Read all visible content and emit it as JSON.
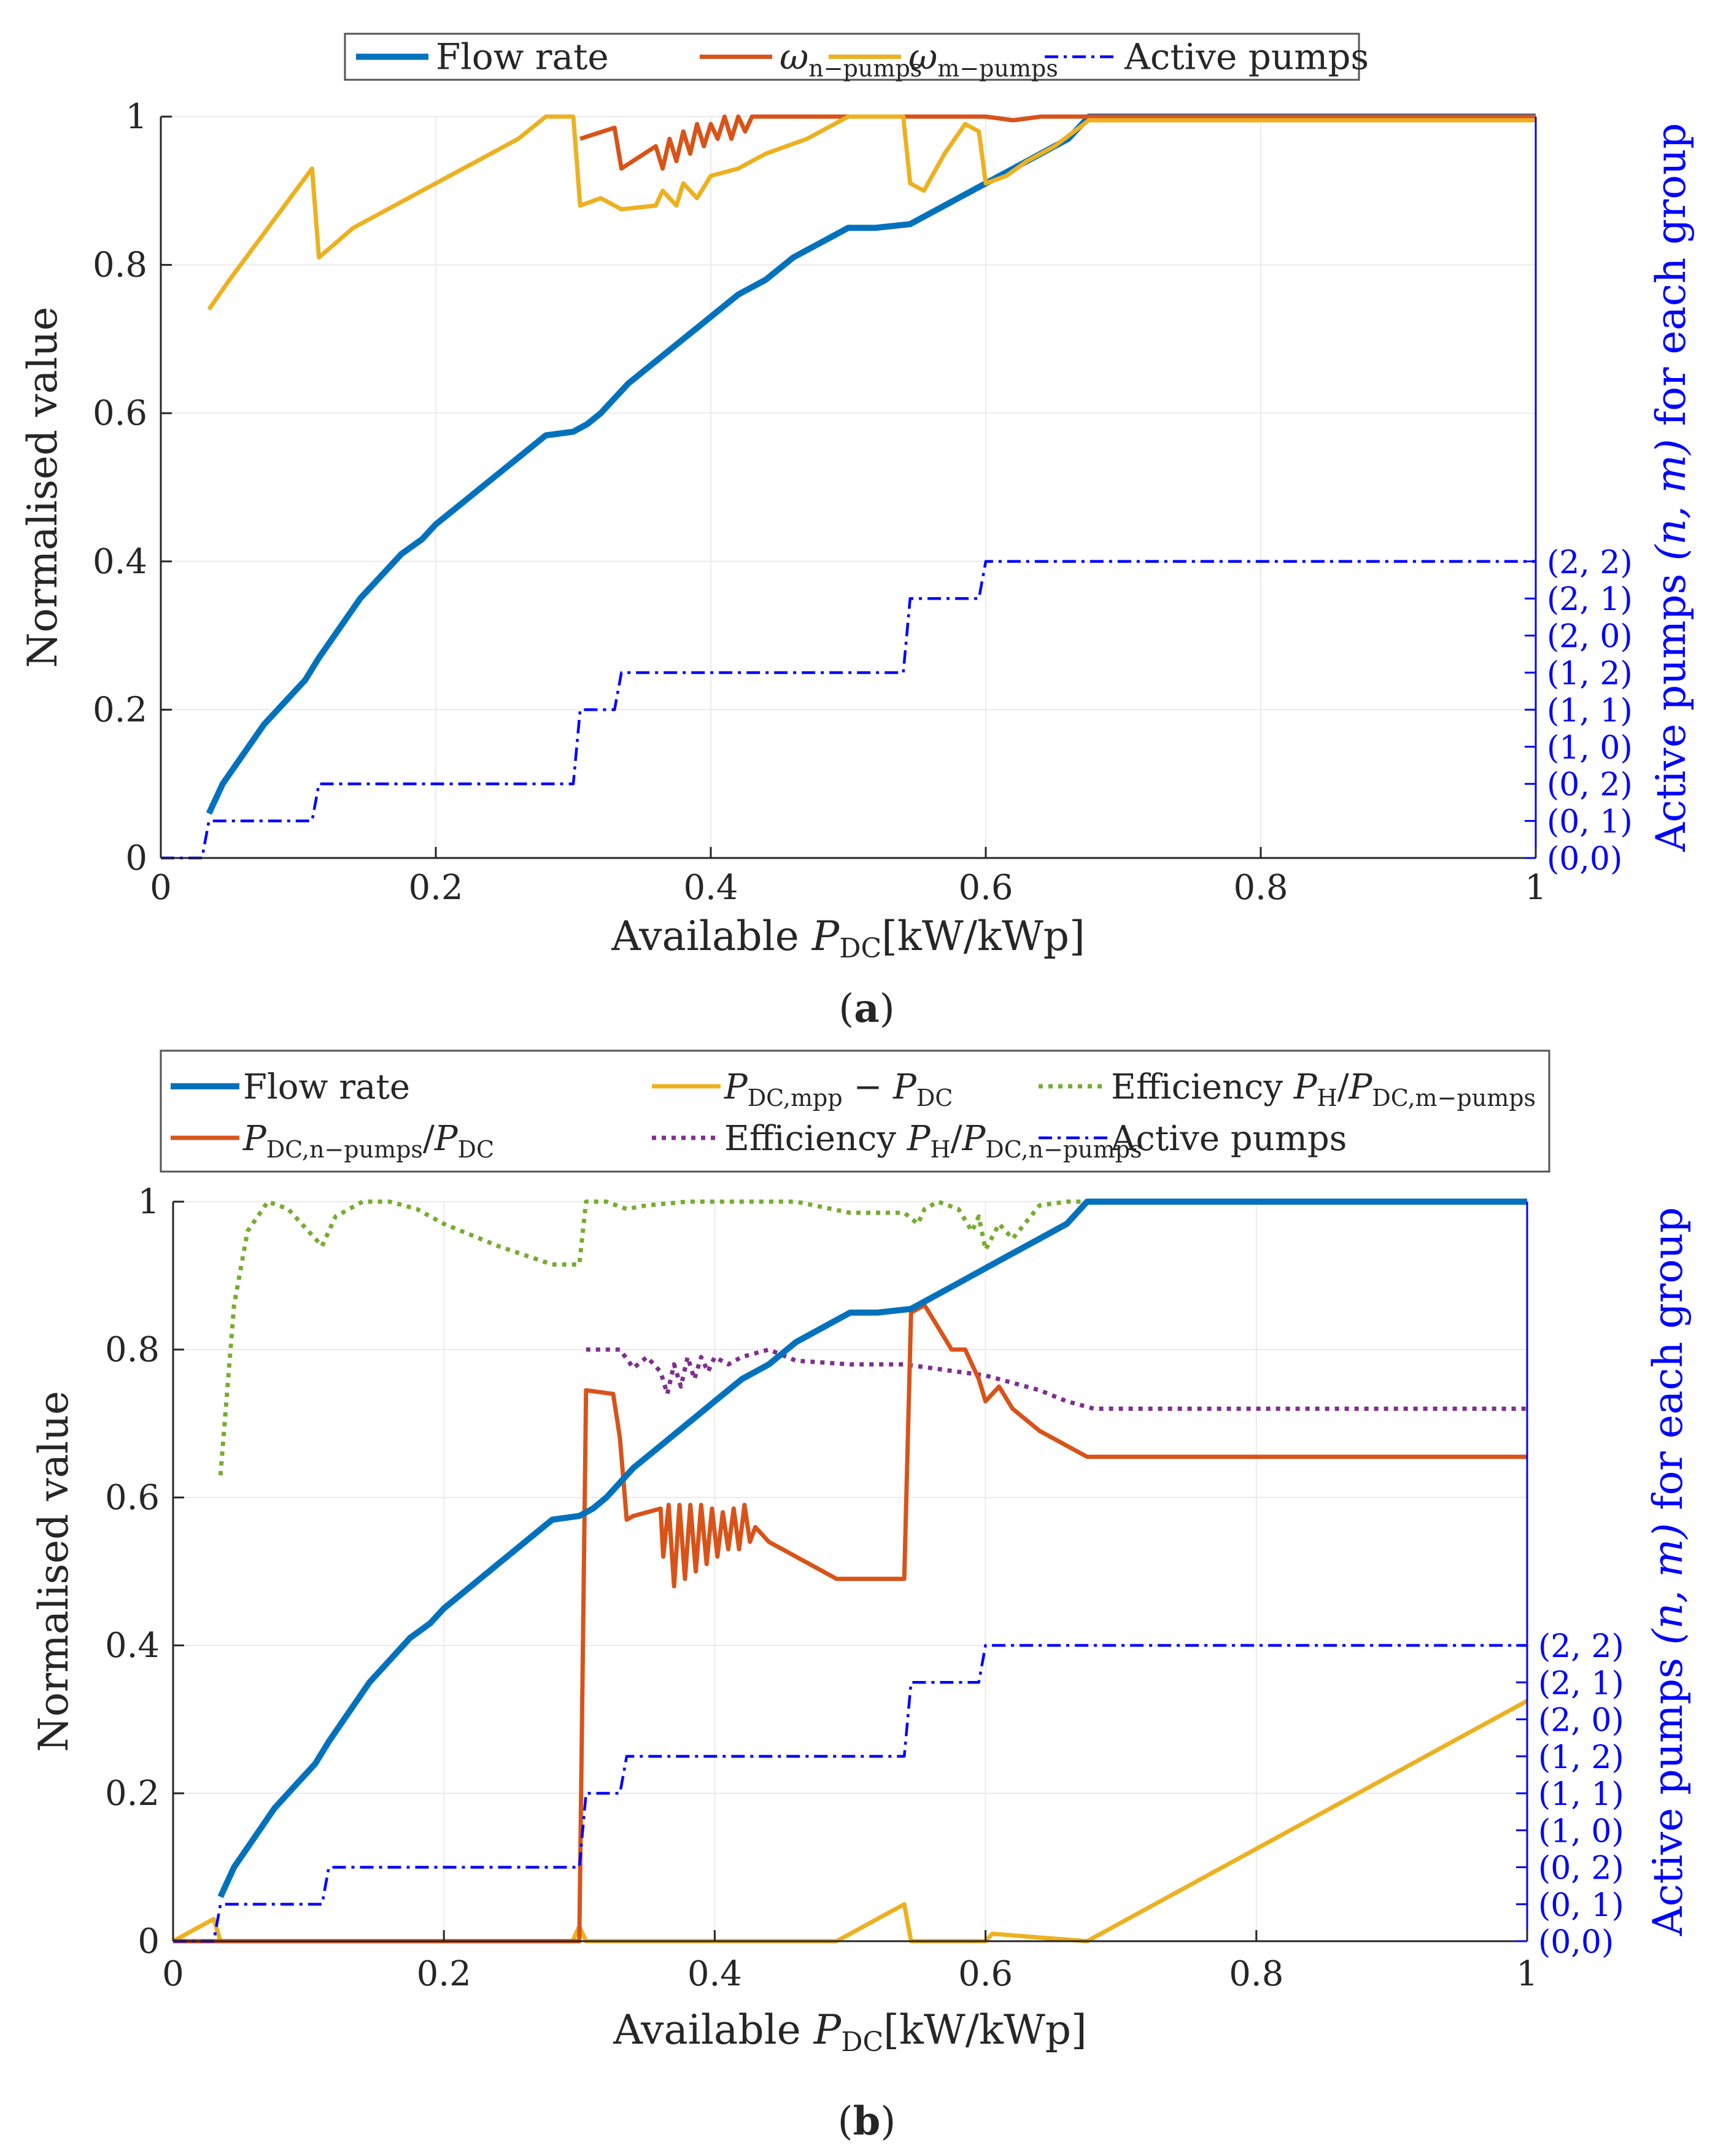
{
  "colors": {
    "flow": "#0072BD",
    "red": "#D95319",
    "yellow": "#EDB120",
    "green": "#77AC30",
    "purple": "#7E2F8E",
    "blue": "#0000FF",
    "axis": "#262626",
    "grid": "#ebebeb"
  },
  "chart_data": [
    {
      "panel_label": "(a)",
      "type": "line",
      "xlabel_prefix": "Available ",
      "xlabel_var": "P",
      "xlabel_sub": "DC",
      "xlabel_unit": "[kW/kWp]",
      "ylabel": "Normalised value",
      "y2label_prefix": "Active pumps ",
      "y2label_var": "(n, m)",
      "y2label_suffix": " for each group",
      "xlim": [
        0,
        1
      ],
      "ylim": [
        0,
        1.0
      ],
      "xticks": [
        "0",
        "0.2",
        "0.4",
        "0.6",
        "0.8",
        "1"
      ],
      "yticks": [
        "0",
        "0.2",
        "0.4",
        "0.6",
        "0.8",
        "1"
      ],
      "y2_ticklabels": [
        "(0,0)",
        "(0, 1)",
        "(0, 2)",
        "(1, 0)",
        "(1, 1)",
        "(1, 2)",
        "(2, 0)",
        "(2, 1)",
        "(2, 2)"
      ],
      "legend": [
        {
          "label": "Flow rate",
          "sub": "",
          "color": "flow",
          "dash": "solid"
        },
        {
          "label": "ω",
          "sub": "n−pumps",
          "color": "red",
          "dash": "solid"
        },
        {
          "label": "ω",
          "sub": "m−pumps",
          "color": "yellow",
          "dash": "solid"
        },
        {
          "label": "Active pumps",
          "sub": "",
          "color": "blue",
          "dash": "dashdot"
        }
      ],
      "series": [
        {
          "name": "Flow rate",
          "color": "flow",
          "dash": "solid",
          "x": [
            0.035,
            0.045,
            0.06,
            0.075,
            0.09,
            0.105,
            0.115,
            0.13,
            0.145,
            0.16,
            0.175,
            0.19,
            0.2,
            0.22,
            0.24,
            0.26,
            0.28,
            0.3,
            0.31,
            0.32,
            0.33,
            0.34,
            0.36,
            0.38,
            0.4,
            0.42,
            0.44,
            0.46,
            0.48,
            0.49,
            0.5,
            0.52,
            0.545,
            0.56,
            0.58,
            0.6,
            0.62,
            0.64,
            0.66,
            0.675,
            1.0
          ],
          "y": [
            0.06,
            0.1,
            0.14,
            0.18,
            0.21,
            0.24,
            0.27,
            0.31,
            0.35,
            0.38,
            0.41,
            0.43,
            0.45,
            0.48,
            0.51,
            0.54,
            0.57,
            0.575,
            0.585,
            0.6,
            0.62,
            0.64,
            0.67,
            0.7,
            0.73,
            0.76,
            0.78,
            0.81,
            0.83,
            0.84,
            0.85,
            0.85,
            0.855,
            0.87,
            0.89,
            0.91,
            0.93,
            0.95,
            0.97,
            1.0,
            1.0
          ]
        },
        {
          "name": "ω n-pumps",
          "color": "red",
          "dash": "solid",
          "x": [
            0.305,
            0.33,
            0.335,
            0.36,
            0.365,
            0.37,
            0.375,
            0.38,
            0.385,
            0.39,
            0.395,
            0.4,
            0.405,
            0.41,
            0.415,
            0.42,
            0.425,
            0.43,
            0.44,
            0.5,
            0.6,
            0.62,
            0.64,
            0.66,
            1.0
          ],
          "y": [
            0.97,
            0.985,
            0.93,
            0.96,
            0.93,
            0.97,
            0.94,
            0.98,
            0.95,
            0.99,
            0.96,
            0.99,
            0.97,
            1.0,
            0.97,
            1.0,
            0.98,
            1.0,
            1.0,
            1.0,
            1.0,
            0.995,
            1.0,
            1.0,
            1.0
          ]
        },
        {
          "name": "ω m-pumps",
          "color": "yellow",
          "dash": "solid",
          "x": [
            0.035,
            0.05,
            0.07,
            0.09,
            0.11,
            0.115,
            0.14,
            0.17,
            0.2,
            0.23,
            0.26,
            0.28,
            0.3,
            0.305,
            0.32,
            0.335,
            0.36,
            0.365,
            0.375,
            0.38,
            0.39,
            0.4,
            0.42,
            0.44,
            0.47,
            0.49,
            0.5,
            0.53,
            0.54,
            0.545,
            0.555,
            0.57,
            0.585,
            0.595,
            0.6,
            0.615,
            0.63,
            0.65,
            0.675,
            1.0
          ],
          "y": [
            0.74,
            0.78,
            0.83,
            0.88,
            0.93,
            0.81,
            0.85,
            0.88,
            0.91,
            0.94,
            0.97,
            1.0,
            1.0,
            0.88,
            0.89,
            0.875,
            0.88,
            0.9,
            0.88,
            0.91,
            0.89,
            0.92,
            0.93,
            0.95,
            0.97,
            0.99,
            1.0,
            1.0,
            1.0,
            0.91,
            0.9,
            0.95,
            0.99,
            0.98,
            0.91,
            0.92,
            0.94,
            0.96,
            0.995,
            0.995
          ]
        },
        {
          "name": "Active pumps",
          "color": "blue",
          "dash": "dashdot",
          "x": [
            0.0,
            0.03,
            0.035,
            0.11,
            0.115,
            0.3,
            0.305,
            0.33,
            0.335,
            0.54,
            0.545,
            0.595,
            0.6,
            1.0
          ],
          "y": [
            0.0,
            0.0,
            0.05,
            0.05,
            0.1,
            0.1,
            0.2,
            0.2,
            0.25,
            0.25,
            0.35,
            0.35,
            0.4,
            0.4
          ]
        }
      ]
    },
    {
      "panel_label": "(b)",
      "type": "line",
      "xlabel_prefix": "Available ",
      "xlabel_var": "P",
      "xlabel_sub": "DC",
      "xlabel_unit": "[kW/kWp]",
      "ylabel": "Normalised value",
      "y2label_prefix": "Active pumps ",
      "y2label_var": "(n, m)",
      "y2label_suffix": " for each group",
      "xlim": [
        0,
        1
      ],
      "ylim": [
        0,
        1.0
      ],
      "xticks": [
        "0",
        "0.2",
        "0.4",
        "0.6",
        "0.8",
        "1"
      ],
      "yticks": [
        "0",
        "0.2",
        "0.4",
        "0.6",
        "0.8",
        "1"
      ],
      "y2_ticklabels": [
        "(0,0)",
        "(0, 1)",
        "(0, 2)",
        "(1, 0)",
        "(1, 1)",
        "(1, 2)",
        "(2, 0)",
        "(2, 1)",
        "(2, 2)"
      ],
      "legend": [
        {
          "label": "Flow rate",
          "color": "flow",
          "dash": "solid",
          "col": 0,
          "row": 0,
          "segments": [
            {
              "t": "Flow rate",
              "s": "n"
            }
          ]
        },
        {
          "label": "PDC,mpp − PDC",
          "color": "yellow",
          "dash": "solid",
          "col": 1,
          "row": 0,
          "segments": [
            {
              "t": "P",
              "s": "i"
            },
            {
              "t": "DC,mpp",
              "s": "sub"
            },
            {
              "t": " − ",
              "s": "n"
            },
            {
              "t": "P",
              "s": "i"
            },
            {
              "t": "DC",
              "s": "sub"
            }
          ]
        },
        {
          "label": "Efficiency PH/PDC,m−pumps",
          "color": "green",
          "dash": "dot",
          "col": 2,
          "row": 0,
          "segments": [
            {
              "t": "Efficiency ",
              "s": "n"
            },
            {
              "t": "P",
              "s": "i"
            },
            {
              "t": "H",
              "s": "sub"
            },
            {
              "t": "/",
              "s": "n"
            },
            {
              "t": "P",
              "s": "i"
            },
            {
              "t": "DC,m−pumps",
              "s": "sub"
            }
          ]
        },
        {
          "label": "PDC,n−pumps/PDC",
          "color": "red",
          "dash": "solid",
          "col": 0,
          "row": 1,
          "segments": [
            {
              "t": "P",
              "s": "i"
            },
            {
              "t": "DC,n−pumps",
              "s": "sub"
            },
            {
              "t": "/",
              "s": "n"
            },
            {
              "t": "P",
              "s": "i"
            },
            {
              "t": "DC",
              "s": "sub"
            }
          ]
        },
        {
          "label": "Efficiency PH/PDC,n−pumps",
          "color": "purple",
          "dash": "dot",
          "col": 1,
          "row": 1,
          "segments": [
            {
              "t": "Efficiency ",
              "s": "n"
            },
            {
              "t": "P",
              "s": "i"
            },
            {
              "t": "H",
              "s": "sub"
            },
            {
              "t": "/",
              "s": "n"
            },
            {
              "t": "P",
              "s": "i"
            },
            {
              "t": "DC,n−pumps",
              "s": "sub"
            }
          ]
        },
        {
          "label": "Active pumps",
          "color": "blue",
          "dash": "dashdot",
          "col": 2,
          "row": 1,
          "segments": [
            {
              "t": "Active pumps",
              "s": "n"
            }
          ]
        }
      ],
      "series": [
        {
          "name": "Efficiency PH/PDC,m-pumps",
          "color": "green",
          "dash": "dot",
          "x": [
            0.035,
            0.045,
            0.055,
            0.07,
            0.085,
            0.1,
            0.11,
            0.12,
            0.14,
            0.16,
            0.18,
            0.2,
            0.24,
            0.28,
            0.3,
            0.305,
            0.32,
            0.335,
            0.35,
            0.38,
            0.42,
            0.46,
            0.5,
            0.54,
            0.55,
            0.555,
            0.565,
            0.58,
            0.59,
            0.595,
            0.6,
            0.61,
            0.62,
            0.64,
            0.66,
            0.68,
            1.0
          ],
          "y": [
            0.63,
            0.86,
            0.96,
            1.0,
            0.99,
            0.96,
            0.94,
            0.98,
            1.0,
            1.0,
            0.99,
            0.97,
            0.94,
            0.915,
            0.915,
            1.0,
            1.0,
            0.99,
            0.995,
            1.0,
            1.0,
            1.0,
            0.985,
            0.985,
            0.97,
            0.99,
            1.0,
            0.99,
            0.96,
            0.98,
            0.935,
            0.97,
            0.95,
            0.995,
            1.0,
            1.0,
            1.0
          ]
        },
        {
          "name": "Efficiency PH/PDC,n-pumps",
          "color": "purple",
          "dash": "dot",
          "x": [
            0.305,
            0.33,
            0.34,
            0.35,
            0.36,
            0.365,
            0.37,
            0.375,
            0.38,
            0.385,
            0.39,
            0.395,
            0.4,
            0.41,
            0.42,
            0.44,
            0.46,
            0.5,
            0.54,
            0.56,
            0.58,
            0.6,
            0.62,
            0.64,
            0.66,
            0.68,
            1.0
          ],
          "y": [
            0.8,
            0.8,
            0.775,
            0.79,
            0.77,
            0.74,
            0.78,
            0.75,
            0.79,
            0.76,
            0.79,
            0.77,
            0.79,
            0.78,
            0.79,
            0.8,
            0.785,
            0.78,
            0.78,
            0.775,
            0.77,
            0.765,
            0.755,
            0.745,
            0.73,
            0.72,
            0.72
          ]
        },
        {
          "name": "PDC,mpp - PDC",
          "color": "yellow",
          "dash": "solid",
          "x": [
            0.0,
            0.03,
            0.035,
            0.1,
            0.2,
            0.295,
            0.3,
            0.305,
            0.4,
            0.49,
            0.54,
            0.545,
            0.6,
            0.605,
            0.675,
            1.0
          ],
          "y": [
            0.0,
            0.03,
            0.0,
            0.0,
            0.0,
            0.0,
            0.02,
            0.0,
            0.0,
            0.0,
            0.05,
            0.0,
            0.0,
            0.01,
            0.0,
            0.325
          ]
        },
        {
          "name": "PDC,n-pumps/PDC",
          "color": "red",
          "dash": "solid",
          "x": [
            0.0,
            0.295,
            0.3,
            0.305,
            0.325,
            0.33,
            0.335,
            0.34,
            0.36,
            0.362,
            0.366,
            0.37,
            0.374,
            0.378,
            0.382,
            0.386,
            0.39,
            0.394,
            0.398,
            0.402,
            0.406,
            0.41,
            0.414,
            0.418,
            0.422,
            0.426,
            0.43,
            0.44,
            0.46,
            0.49,
            0.54,
            0.545,
            0.555,
            0.565,
            0.575,
            0.585,
            0.595,
            0.6,
            0.61,
            0.62,
            0.64,
            0.66,
            0.675,
            1.0
          ],
          "y": [
            0.0,
            0.0,
            0.0,
            0.745,
            0.74,
            0.68,
            0.57,
            0.575,
            0.585,
            0.52,
            0.59,
            0.48,
            0.59,
            0.49,
            0.59,
            0.5,
            0.59,
            0.51,
            0.585,
            0.52,
            0.58,
            0.53,
            0.585,
            0.53,
            0.59,
            0.54,
            0.56,
            0.54,
            0.52,
            0.49,
            0.49,
            0.85,
            0.86,
            0.83,
            0.8,
            0.8,
            0.76,
            0.73,
            0.75,
            0.72,
            0.69,
            0.67,
            0.655,
            0.655
          ]
        },
        {
          "name": "Flow rate",
          "color": "flow",
          "dash": "solid",
          "x": [
            0.035,
            0.045,
            0.06,
            0.075,
            0.09,
            0.105,
            0.115,
            0.13,
            0.145,
            0.16,
            0.175,
            0.19,
            0.2,
            0.22,
            0.24,
            0.26,
            0.28,
            0.3,
            0.31,
            0.32,
            0.33,
            0.34,
            0.36,
            0.38,
            0.4,
            0.42,
            0.44,
            0.46,
            0.48,
            0.49,
            0.5,
            0.52,
            0.545,
            0.56,
            0.58,
            0.6,
            0.62,
            0.64,
            0.66,
            0.675,
            1.0
          ],
          "y": [
            0.06,
            0.1,
            0.14,
            0.18,
            0.21,
            0.24,
            0.27,
            0.31,
            0.35,
            0.38,
            0.41,
            0.43,
            0.45,
            0.48,
            0.51,
            0.54,
            0.57,
            0.575,
            0.585,
            0.6,
            0.62,
            0.64,
            0.67,
            0.7,
            0.73,
            0.76,
            0.78,
            0.81,
            0.83,
            0.84,
            0.85,
            0.85,
            0.855,
            0.87,
            0.89,
            0.91,
            0.93,
            0.95,
            0.97,
            1.0,
            1.0
          ]
        },
        {
          "name": "Active pumps",
          "color": "blue",
          "dash": "dashdot",
          "x": [
            0.0,
            0.03,
            0.035,
            0.11,
            0.115,
            0.3,
            0.305,
            0.33,
            0.335,
            0.54,
            0.545,
            0.595,
            0.6,
            1.0
          ],
          "y": [
            0.0,
            0.0,
            0.05,
            0.05,
            0.1,
            0.1,
            0.2,
            0.2,
            0.25,
            0.25,
            0.35,
            0.35,
            0.4,
            0.4
          ]
        }
      ]
    }
  ]
}
